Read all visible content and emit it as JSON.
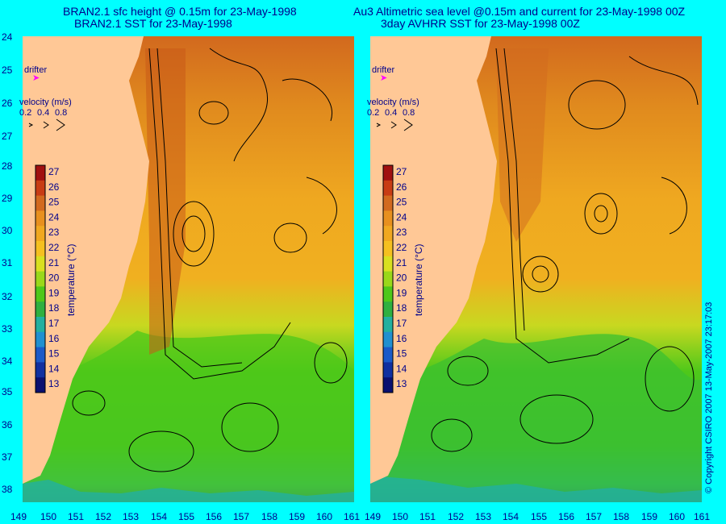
{
  "left_panel": {
    "title_line1": "BRAN2.1 sfc height @ 0.15m for 23-May-1998",
    "title_line2": "BRAN2.1 SST for 23-May-1998"
  },
  "right_panel": {
    "title_line1": "Au3 Altimetric sea level  @0.15m and current for 23-May-1998 00Z",
    "title_line2": "3day AVHRR SST for 23-May-1998 00Z"
  },
  "y_axis_ticks": [
    "24",
    "25",
    "26",
    "27",
    "28",
    "29",
    "30",
    "31",
    "32",
    "33",
    "34",
    "35",
    "36",
    "37",
    "38"
  ],
  "x_axis_ticks": [
    "149",
    "150",
    "151",
    "152",
    "153",
    "154",
    "155",
    "156",
    "157",
    "158",
    "159",
    "160",
    "161"
  ],
  "legend": {
    "drifter_label": "drifter",
    "velocity_title": "velocity (m/s)",
    "velocity_values": [
      "0.2",
      "0.4",
      "0.8"
    ]
  },
  "colorbar": {
    "title": "temperature (°C)",
    "ticks": [
      "27",
      "26",
      "25",
      "24",
      "23",
      "22",
      "21",
      "20",
      "19",
      "18",
      "17",
      "16",
      "15",
      "14",
      "13"
    ],
    "colors": [
      "#a01010",
      "#c83c14",
      "#d2691e",
      "#e8901e",
      "#f0a820",
      "#f5c020",
      "#d8e020",
      "#9ad81a",
      "#4ec81a",
      "#2fb040",
      "#22b0a0",
      "#2090d0",
      "#1a5ac8",
      "#1030a0",
      "#0a1070"
    ]
  },
  "copyright": "© Copyright CSIRO 2007   13-May-2007 23:17:03"
}
